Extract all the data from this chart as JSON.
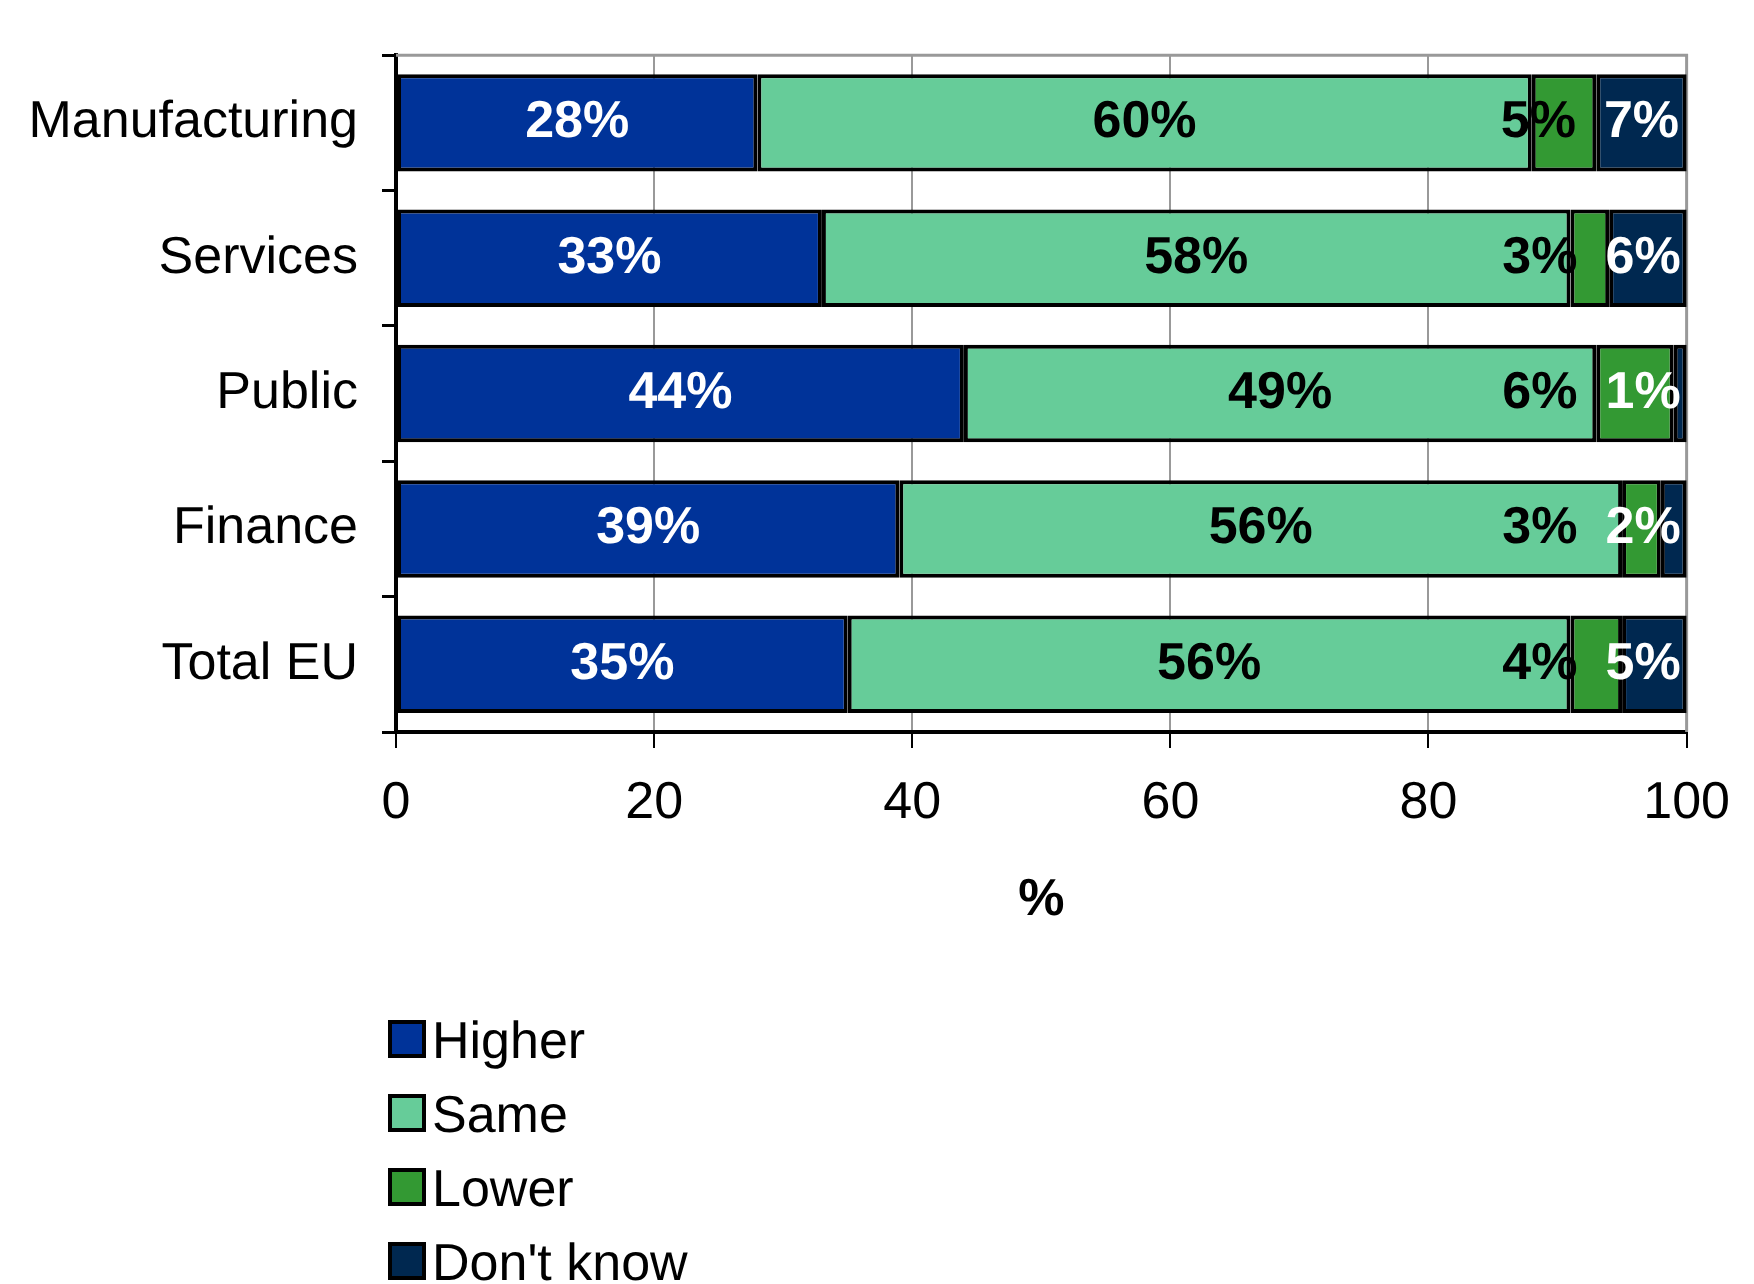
{
  "chart_data": {
    "type": "bar",
    "orientation": "horizontal",
    "stacked": true,
    "categories": [
      "Manufacturing",
      "Services",
      "Public",
      "Finance",
      "Total EU"
    ],
    "series": [
      {
        "name": "Higher",
        "color": "#003399",
        "values": [
          28,
          33,
          44,
          39,
          35
        ],
        "value_labels": [
          "28%",
          "33%",
          "44%",
          "39%",
          "35%"
        ]
      },
      {
        "name": "Same",
        "color": "#66cc99",
        "values": [
          60,
          58,
          49,
          56,
          56
        ],
        "value_labels": [
          "60%",
          "58%",
          "49%",
          "56%",
          "56%"
        ]
      },
      {
        "name": "Lower",
        "color": "#339933",
        "values": [
          5,
          3,
          6,
          3,
          4
        ],
        "value_labels": [
          "5%",
          "3%",
          "6%",
          "3%",
          "4%"
        ]
      },
      {
        "name": "Don't know",
        "color": "#002850",
        "values": [
          7,
          6,
          1,
          2,
          5
        ],
        "value_labels": [
          "7%",
          "6%",
          "1%",
          "2%",
          "5%"
        ]
      }
    ],
    "xlabel": "%",
    "xlim": [
      0,
      100
    ],
    "xticks": [
      0,
      20,
      40,
      60,
      80,
      100
    ],
    "grid": "x",
    "legend": "bottom"
  }
}
